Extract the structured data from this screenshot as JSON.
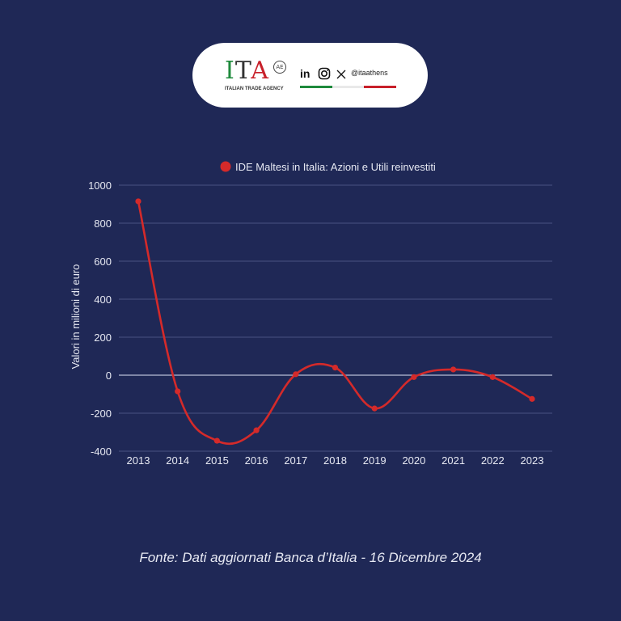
{
  "header": {
    "logo_text_i": "I",
    "logo_text_t": "T",
    "logo_text_a": "A",
    "logo_mark": "AE",
    "logo_subtitle": "ITALIAN TRADE AGENCY",
    "social_handle": "@itaathens",
    "icons": [
      "linkedin-icon",
      "instagram-icon",
      "x-icon"
    ],
    "colors": {
      "green": "#1e8a3c",
      "white": "#e9e9e9",
      "red": "#c8202a"
    }
  },
  "chart_data": {
    "type": "line",
    "title": "",
    "legend": "IDE Maltesi in Italia: Azioni e Utili reinvestiti",
    "legend_position": "top-center",
    "xlabel": "",
    "ylabel": "Valori in milioni di euro",
    "x": [
      "2013",
      "2014",
      "2015",
      "2016",
      "2017",
      "2018",
      "2019",
      "2020",
      "2021",
      "2022",
      "2023"
    ],
    "series": [
      {
        "name": "IDE Maltesi in Italia: Azioni e Utili reinvestiti",
        "color": "#d42a2a",
        "values": [
          915,
          -85,
          -345,
          -290,
          5,
          40,
          -175,
          -10,
          30,
          -10,
          -125
        ]
      }
    ],
    "ylim": [
      -400,
      1000
    ],
    "yticks": [
      1000,
      800,
      600,
      400,
      200,
      0,
      -200,
      -400
    ],
    "grid": true,
    "smooth": true
  },
  "footer": {
    "source": "Fonte: Dati aggiornati Banca d’Italia - 16 Dicembre 2024"
  }
}
